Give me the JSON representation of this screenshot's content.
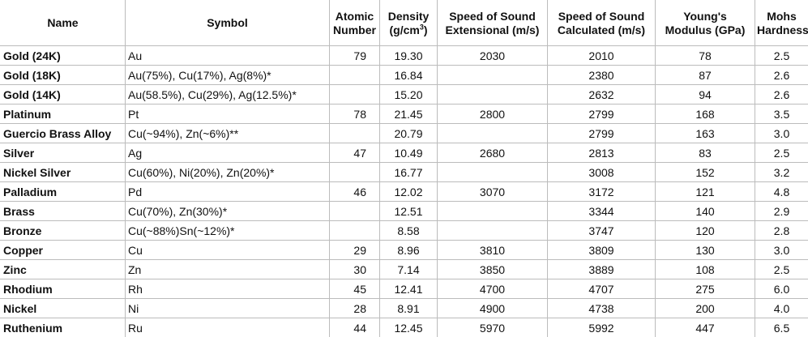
{
  "table": {
    "headers": {
      "name": "Name",
      "symbol": "Symbol",
      "atomic_1": "Atomic",
      "atomic_2": "Number",
      "density_1": "Density",
      "density_2": "(g/cm",
      "density_sup": "3",
      "density_3": ")",
      "ext_1": "Speed of Sound",
      "ext_2": "Extensional (m/s)",
      "calc_1": "Speed of Sound",
      "calc_2": "Calculated (m/s)",
      "young_1": "Young's",
      "young_2": "Modulus (GPa)",
      "mohs_1": "Mohs",
      "mohs_2": "Hardness"
    },
    "rows": [
      {
        "name": "Gold (24K)",
        "symbol": "Au",
        "atomic": "79",
        "density": "19.30",
        "ext": "2030",
        "calc": "2010",
        "young": "78",
        "mohs": "2.5"
      },
      {
        "name": "Gold (18K)",
        "symbol": "Au(75%), Cu(17%), Ag(8%)*",
        "atomic": "",
        "density": "16.84",
        "ext": "",
        "calc": "2380",
        "young": "87",
        "mohs": "2.6"
      },
      {
        "name": "Gold (14K)",
        "symbol": "Au(58.5%), Cu(29%), Ag(12.5%)*",
        "atomic": "",
        "density": "15.20",
        "ext": "",
        "calc": "2632",
        "young": "94",
        "mohs": "2.6"
      },
      {
        "name": "Platinum",
        "symbol": "Pt",
        "atomic": "78",
        "density": "21.45",
        "ext": "2800",
        "calc": "2799",
        "young": "168",
        "mohs": "3.5"
      },
      {
        "name": "Guercio Brass Alloy",
        "symbol": "Cu(~94%), Zn(~6%)**",
        "atomic": "",
        "density": "20.79",
        "ext": "",
        "calc": "2799",
        "young": "163",
        "mohs": "3.0"
      },
      {
        "name": "Silver",
        "symbol": "Ag",
        "atomic": "47",
        "density": "10.49",
        "ext": "2680",
        "calc": "2813",
        "young": "83",
        "mohs": "2.5"
      },
      {
        "name": "Nickel Silver",
        "symbol": "Cu(60%), Ni(20%), Zn(20%)*",
        "atomic": "",
        "density": "16.77",
        "ext": "",
        "calc": "3008",
        "young": "152",
        "mohs": "3.2"
      },
      {
        "name": "Palladium",
        "symbol": "Pd",
        "atomic": "46",
        "density": "12.02",
        "ext": "3070",
        "calc": "3172",
        "young": "121",
        "mohs": "4.8"
      },
      {
        "name": "Brass",
        "symbol": "Cu(70%), Zn(30%)*",
        "atomic": "",
        "density": "12.51",
        "ext": "",
        "calc": "3344",
        "young": "140",
        "mohs": "2.9"
      },
      {
        "name": "Bronze",
        "symbol": "Cu(~88%)Sn(~12%)*",
        "atomic": "",
        "density": "8.58",
        "ext": "",
        "calc": "3747",
        "young": "120",
        "mohs": "2.8"
      },
      {
        "name": "Copper",
        "symbol": "Cu",
        "atomic": "29",
        "density": "8.96",
        "ext": "3810",
        "calc": "3809",
        "young": "130",
        "mohs": "3.0"
      },
      {
        "name": "Zinc",
        "symbol": "Zn",
        "atomic": "30",
        "density": "7.14",
        "ext": "3850",
        "calc": "3889",
        "young": "108",
        "mohs": "2.5"
      },
      {
        "name": "Rhodium",
        "symbol": "Rh",
        "atomic": "45",
        "density": "12.41",
        "ext": "4700",
        "calc": "4707",
        "young": "275",
        "mohs": "6.0"
      },
      {
        "name": "Nickel",
        "symbol": "Ni",
        "atomic": "28",
        "density": "8.91",
        "ext": "4900",
        "calc": "4738",
        "young": "200",
        "mohs": "4.0"
      },
      {
        "name": "Ruthenium",
        "symbol": "Ru",
        "atomic": "44",
        "density": "12.45",
        "ext": "5970",
        "calc": "5992",
        "young": "447",
        "mohs": "6.5"
      }
    ]
  }
}
